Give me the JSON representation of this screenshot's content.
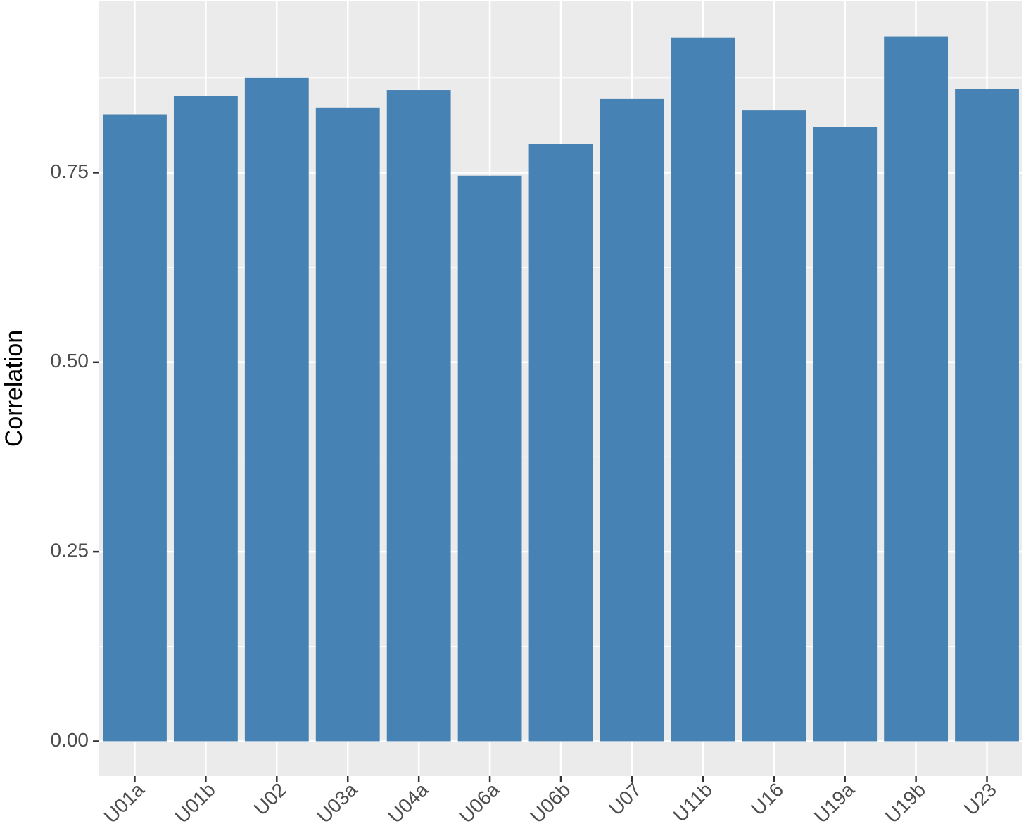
{
  "chart_data": {
    "type": "bar",
    "y_label": "Correlation",
    "categories": [
      "U01a",
      "U01b",
      "U02",
      "U03a",
      "U04a",
      "U06a",
      "U06b",
      "U07",
      "U11b",
      "U16",
      "U19a",
      "U19b",
      "U23"
    ],
    "values": [
      0.827,
      0.851,
      0.875,
      0.836,
      0.859,
      0.746,
      0.788,
      0.848,
      0.928,
      0.832,
      0.81,
      0.93,
      0.86
    ],
    "color": "#4682b4",
    "ylim": [
      -0.046,
      0.976
    ],
    "yticks": [
      {
        "value": 0,
        "label": "0.00"
      },
      {
        "value": 0.25,
        "label": "0.25"
      },
      {
        "value": 0.5,
        "label": "0.50"
      },
      {
        "value": 0.75,
        "label": "0.75"
      }
    ],
    "minor_yticks": [
      0.125,
      0.375,
      0.625,
      0.875
    ],
    "grid": true
  }
}
